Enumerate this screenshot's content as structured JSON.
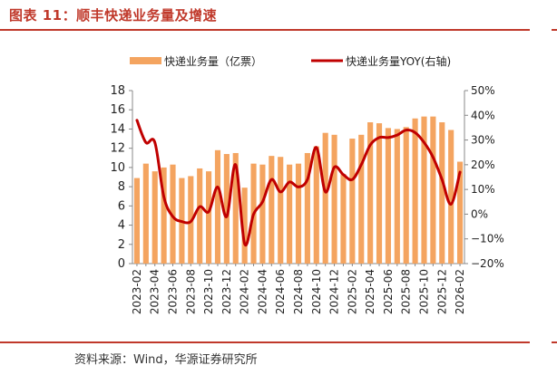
{
  "header": {
    "title": "图表 11：顺丰快递业务量及增速"
  },
  "footer": {
    "source": "资料来源：Wind，华源证券研究所"
  },
  "colors": {
    "bar": "#F4A460",
    "line": "#C00000",
    "accent": "#c0392b"
  },
  "chart_data": {
    "type": "bar+line",
    "legend_position": "top",
    "categories": [
      "2023-02",
      "2023-03",
      "2023-04",
      "2023-05",
      "2023-06",
      "2023-07",
      "2023-08",
      "2023-09",
      "2023-10",
      "2023-11",
      "2023-12",
      "2024-01",
      "2024-02",
      "2024-03",
      "2024-04",
      "2024-05",
      "2024-06",
      "2024-07",
      "2024-08",
      "2024-09",
      "2024-10",
      "2024-11",
      "2024-12",
      "2025-01",
      "2025-02",
      "2025-03",
      "2025-04",
      "2025-05",
      "2025-06",
      "2025-07",
      "2025-08",
      "2025-09",
      "2025-10",
      "2025-11",
      "2025-12",
      "2026-01",
      "2026-02"
    ],
    "x_tick_labels": [
      "2023-02",
      "2023-04",
      "2023-06",
      "2023-08",
      "2023-10",
      "2023-12",
      "2024-02",
      "2024-04",
      "2024-06",
      "2024-08",
      "2024-10",
      "2024-12",
      "2025-02",
      "2025-04",
      "2025-06",
      "2025-08",
      "2025-10",
      "2025-12",
      "2026-02"
    ],
    "series": [
      {
        "name": "快递业务量（亿票）",
        "type": "bar",
        "axis": "left",
        "values": [
          8.9,
          10.4,
          9.6,
          10.0,
          10.3,
          8.9,
          9.1,
          9.9,
          9.6,
          11.8,
          11.4,
          11.5,
          7.9,
          10.4,
          10.3,
          11.2,
          11.1,
          10.3,
          10.4,
          11.5,
          12.2,
          13.6,
          13.4,
          9.3,
          13.0,
          13.4,
          14.7,
          14.6,
          14.1,
          14.0,
          14.2,
          15.1,
          15.3,
          15.3,
          14.7,
          13.9,
          10.6
        ]
      },
      {
        "name": "快递业务量YOY(右轴)",
        "type": "line",
        "axis": "right",
        "values": [
          38,
          29,
          29,
          7,
          -1,
          -3,
          -3,
          3,
          1,
          11,
          -1,
          20,
          -12,
          0,
          5,
          14,
          9,
          13,
          11,
          14,
          27,
          9,
          19,
          16,
          14,
          20,
          28,
          31,
          31,
          32,
          34,
          33,
          29,
          23,
          14,
          4,
          17
        ]
      }
    ],
    "y_left": {
      "min": 0,
      "max": 18,
      "ticks": [
        0,
        2,
        4,
        6,
        8,
        10,
        12,
        14,
        16,
        18
      ]
    },
    "y_right": {
      "min": -20,
      "max": 50,
      "ticks": [
        -20,
        -10,
        0,
        10,
        20,
        30,
        40,
        50
      ],
      "tick_labels": [
        "−20%",
        "−10%",
        "0%",
        "10%",
        "20%",
        "30%",
        "40%",
        "50%"
      ]
    }
  }
}
